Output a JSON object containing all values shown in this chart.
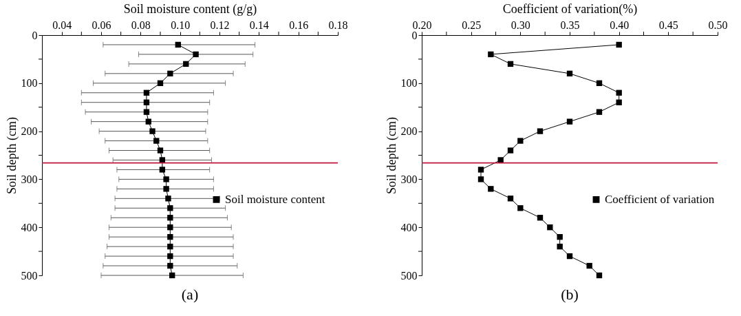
{
  "chart_data": [
    {
      "type": "line",
      "xlabel": "Soil moisture content (g/g)",
      "ylabel": "Soil depth (cm)",
      "annotations": [
        "(a)"
      ],
      "marker": "square",
      "line_style": "solid",
      "grid": false,
      "legend": "right",
      "xlim": [
        0.03,
        0.18
      ],
      "xticks": [
        0.04,
        {
          "value": 0.05,
          "label": null
        },
        0.06,
        {
          "value": 0.07,
          "label": null
        },
        0.08,
        {
          "value": 0.09,
          "label": null
        },
        {
          "value": 0.1,
          "label": "0.10"
        },
        {
          "value": 0.11,
          "label": null
        },
        0.12,
        {
          "value": 0.13,
          "label": null
        },
        0.14,
        {
          "value": 0.15,
          "label": null
        },
        0.16,
        {
          "value": 0.17,
          "label": null
        },
        0.18
      ],
      "ylim": [
        500,
        0
      ],
      "yticks": [
        0,
        {
          "value": 50,
          "label": null
        },
        100,
        {
          "value": 150,
          "label": null
        },
        200,
        {
          "value": 250,
          "label": null
        },
        300,
        {
          "value": 350,
          "label": null
        },
        400,
        {
          "value": 450,
          "label": null
        },
        500
      ],
      "ref_lines": [
        {
          "axis": "y",
          "value": 266,
          "color": "#c0143c"
        }
      ],
      "series": [
        {
          "name": "Soil moisture content",
          "color": "#000000",
          "x": [
            0.099,
            0.108,
            0.103,
            0.095,
            0.09,
            0.083,
            0.083,
            0.083,
            0.084,
            0.086,
            0.088,
            0.09,
            0.091,
            0.091,
            0.093,
            0.093,
            0.094,
            0.095,
            0.095,
            0.095,
            0.095,
            0.095,
            0.095,
            0.095,
            0.096
          ],
          "values": [
            20,
            40,
            60,
            80,
            100,
            120,
            140,
            160,
            180,
            200,
            220,
            240,
            260,
            280,
            300,
            320,
            340,
            360,
            380,
            400,
            420,
            440,
            460,
            480,
            500
          ],
          "xerrors": [
            [
              0.061,
              0.138
            ],
            [
              0.079,
              0.137
            ],
            [
              0.074,
              0.133
            ],
            [
              0.062,
              0.127
            ],
            [
              0.056,
              0.123
            ],
            [
              0.05,
              0.117
            ],
            [
              0.05,
              0.115
            ],
            [
              0.052,
              0.114
            ],
            [
              0.055,
              0.114
            ],
            [
              0.059,
              0.113
            ],
            [
              0.062,
              0.114
            ],
            [
              0.064,
              0.115
            ],
            [
              0.066,
              0.116
            ],
            [
              0.068,
              0.115
            ],
            [
              0.069,
              0.117
            ],
            [
              0.068,
              0.117
            ],
            [
              0.067,
              0.12
            ],
            [
              0.067,
              0.123
            ],
            [
              0.065,
              0.124
            ],
            [
              0.064,
              0.126
            ],
            [
              0.064,
              0.127
            ],
            [
              0.063,
              0.127
            ],
            [
              0.062,
              0.127
            ],
            [
              0.061,
              0.129
            ],
            [
              0.06,
              0.132
            ]
          ]
        }
      ]
    },
    {
      "type": "line",
      "xlabel": "Coefficient of variation(%)",
      "ylabel": "Soil depth (cm)",
      "annotations": [
        "(b)"
      ],
      "marker": "square",
      "line_style": "solid",
      "grid": false,
      "legend": "right",
      "xlim": [
        0.2,
        0.5
      ],
      "xticks": [
        {
          "value": 0.2,
          "label": "0.20"
        },
        {
          "value": 0.225,
          "label": null
        },
        0.25,
        {
          "value": 0.275,
          "label": null
        },
        {
          "value": 0.3,
          "label": "0.30"
        },
        {
          "value": 0.325,
          "label": null
        },
        0.35,
        {
          "value": 0.375,
          "label": null
        },
        {
          "value": 0.4,
          "label": "0.40"
        },
        {
          "value": 0.425,
          "label": null
        },
        0.45,
        {
          "value": 0.475,
          "label": null
        },
        {
          "value": 0.5,
          "label": "0.50"
        }
      ],
      "ylim": [
        500,
        0
      ],
      "yticks": [
        0,
        {
          "value": 50,
          "label": null
        },
        100,
        {
          "value": 150,
          "label": null
        },
        200,
        {
          "value": 250,
          "label": null
        },
        300,
        {
          "value": 350,
          "label": null
        },
        400,
        {
          "value": 450,
          "label": null
        },
        500
      ],
      "ref_lines": [
        {
          "axis": "y",
          "value": 266,
          "color": "#c0143c"
        }
      ],
      "series": [
        {
          "name": "Coefficient of variation",
          "color": "#000000",
          "x": [
            0.4,
            0.27,
            0.29,
            0.35,
            0.38,
            0.4,
            0.4,
            0.38,
            0.35,
            0.32,
            0.3,
            0.29,
            0.28,
            0.26,
            0.26,
            0.27,
            0.29,
            0.3,
            0.32,
            0.33,
            0.34,
            0.34,
            0.35,
            0.37,
            0.38
          ],
          "values": [
            20,
            40,
            60,
            80,
            100,
            120,
            140,
            160,
            180,
            200,
            220,
            240,
            260,
            280,
            300,
            320,
            340,
            360,
            380,
            400,
            420,
            440,
            460,
            480,
            500
          ]
        }
      ]
    }
  ]
}
